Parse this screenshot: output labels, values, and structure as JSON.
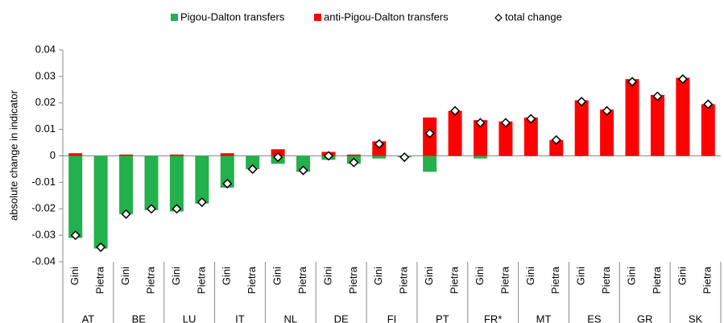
{
  "chart_data": {
    "type": "bar",
    "stacked": true,
    "y_label": "absolute change in indicator",
    "groups": [
      "AT",
      "BE",
      "LU",
      "IT",
      "NL",
      "DE",
      "FI",
      "PT",
      "FR*",
      "MT",
      "ES",
      "GR",
      "SK"
    ],
    "categories": [
      "Gini",
      "Pietra",
      "Gini",
      "Pietra",
      "Gini",
      "Pietra",
      "Gini",
      "Pietra",
      "Gini",
      "Pietra",
      "Gini",
      "Pietra",
      "Gini",
      "Pietra",
      "Gini",
      "Pietra",
      "Gini",
      "Pietra",
      "Gini",
      "Pietra",
      "Gini",
      "Pietra",
      "Gini",
      "Pietra",
      "Gini",
      "Pietra"
    ],
    "series": [
      {
        "name": "Pigou-Dalton transfers",
        "type": "bar",
        "color": "#22b14c",
        "values": [
          -0.031,
          -0.035,
          -0.022,
          -0.0205,
          -0.021,
          -0.018,
          -0.012,
          -0.005,
          -0.003,
          -0.006,
          -0.0015,
          -0.003,
          -0.001,
          -0.0005,
          -0.006,
          0,
          -0.001,
          0,
          0,
          0,
          0,
          0,
          0,
          0,
          0,
          0
        ]
      },
      {
        "name": "anti-Pigou-Dalton transfers",
        "type": "bar",
        "color": "#ff0000",
        "values": [
          0.001,
          0,
          0.0005,
          0,
          0.0005,
          0,
          0.001,
          0,
          0.0025,
          0,
          0.0015,
          0.0005,
          0.0055,
          0,
          0.0145,
          0.017,
          0.0135,
          0.013,
          0.0145,
          0.006,
          0.021,
          0.0175,
          0.029,
          0.023,
          0.0295,
          0.0195
        ]
      },
      {
        "name": "total change",
        "type": "scatter",
        "color": "#ffffff",
        "values": [
          -0.03,
          -0.0345,
          -0.022,
          -0.02,
          -0.02,
          -0.0175,
          -0.0105,
          -0.005,
          -0.0005,
          -0.0055,
          0,
          -0.0025,
          0.0045,
          -0.0005,
          0.0085,
          0.017,
          0.0125,
          0.0125,
          0.014,
          0.006,
          0.0205,
          0.017,
          0.028,
          0.0225,
          0.029,
          0.0195
        ]
      }
    ],
    "ylim": [
      -0.04,
      0.04
    ],
    "yticks": [
      -0.04,
      -0.03,
      -0.02,
      -0.01,
      0,
      0.01,
      0.02,
      0.03,
      0.04
    ],
    "legend": "top",
    "grid": false
  }
}
